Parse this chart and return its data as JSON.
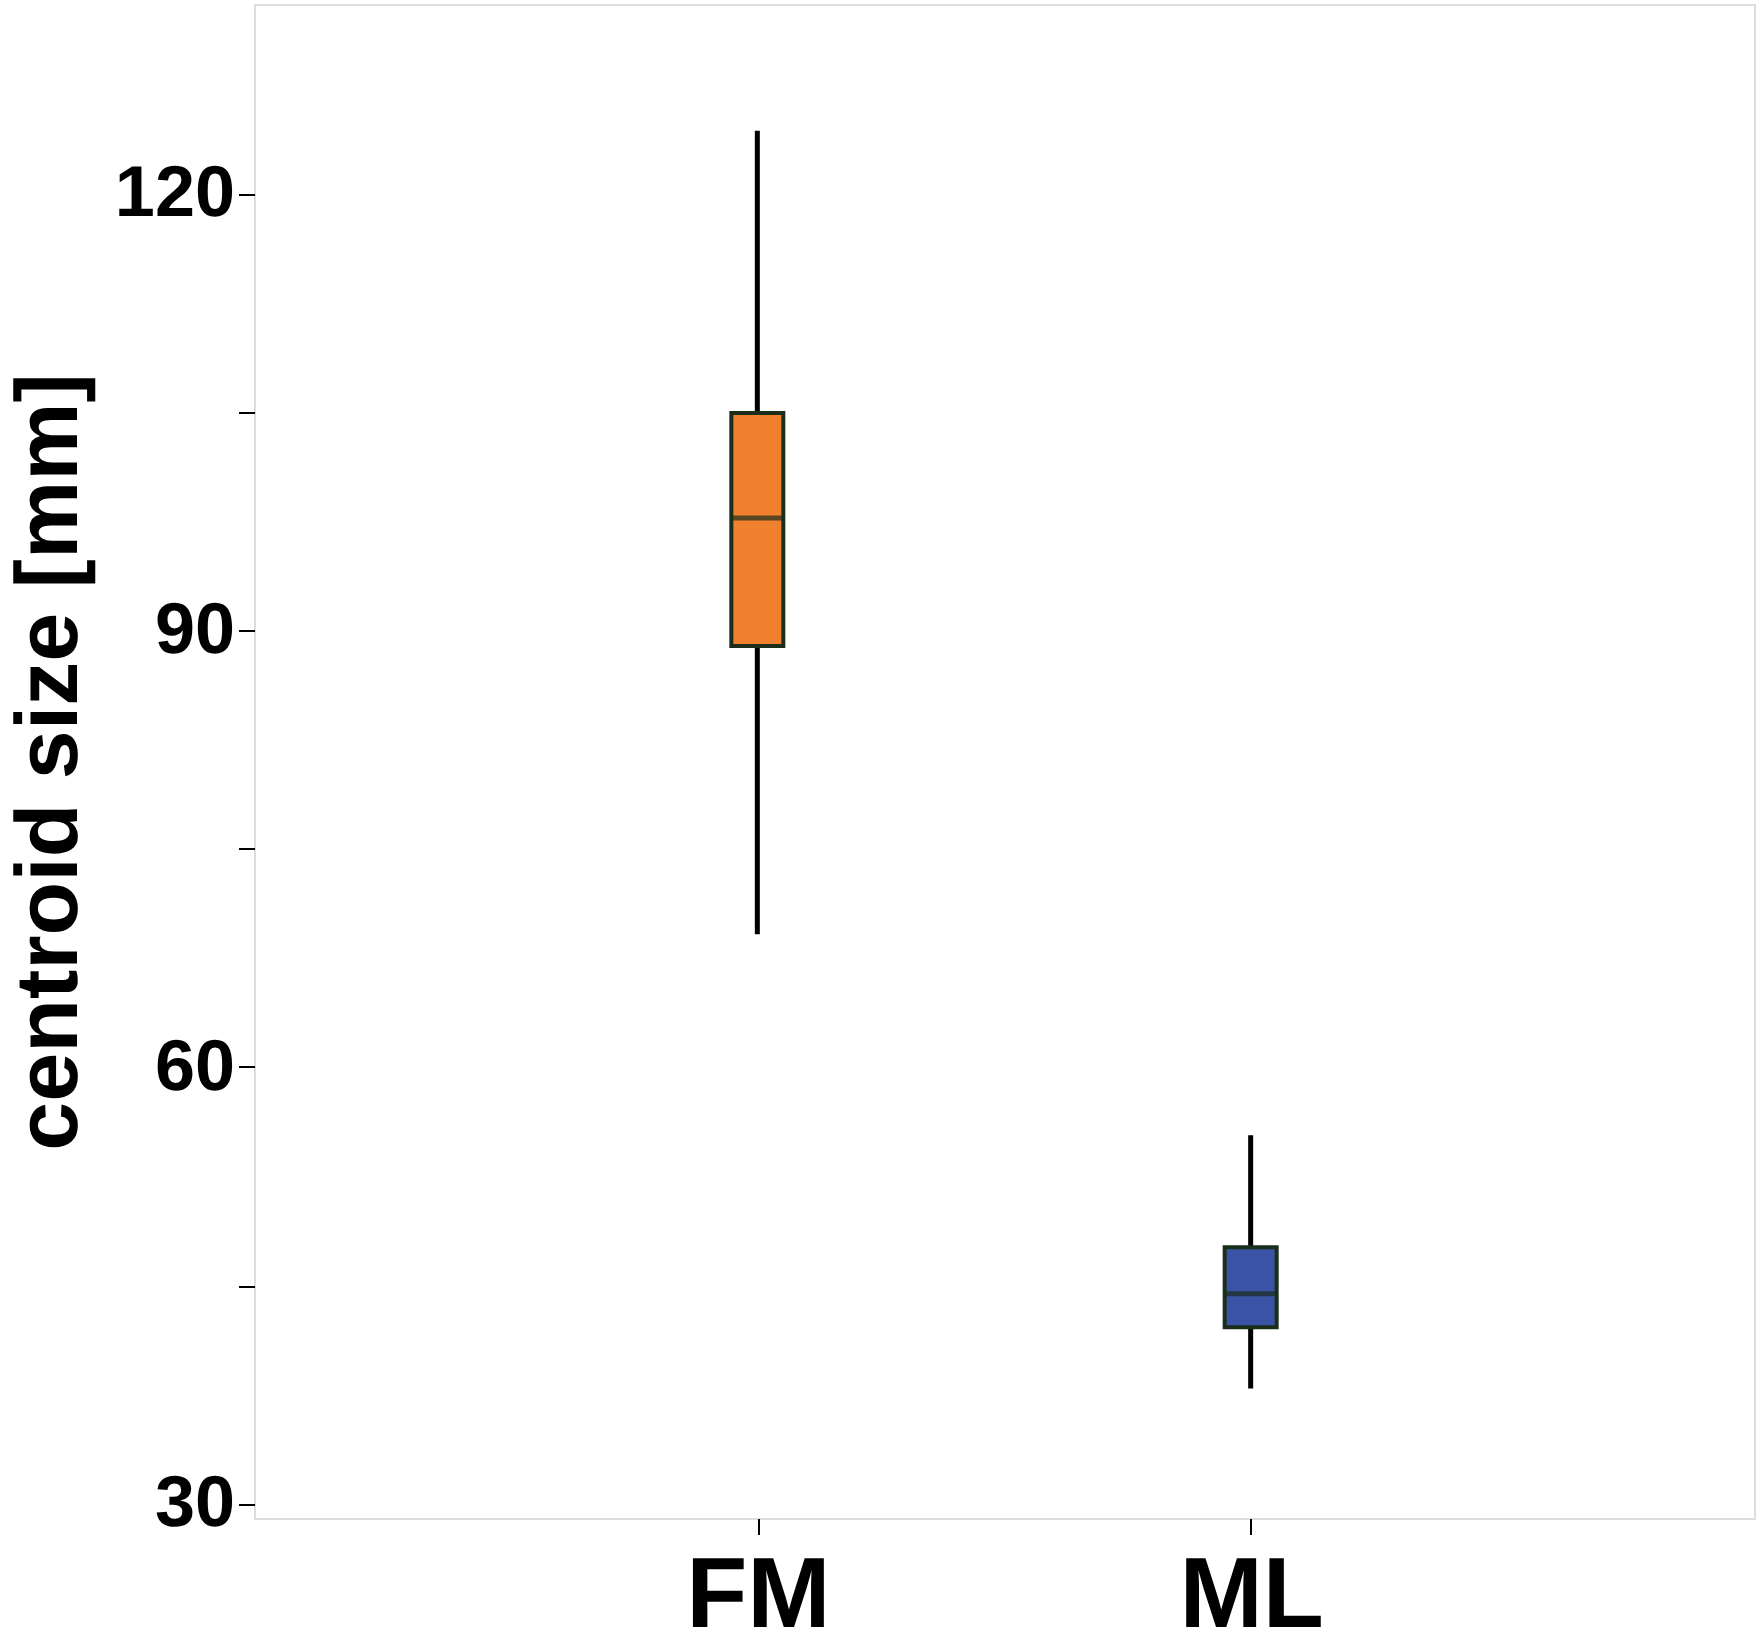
{
  "chart_data": {
    "type": "box",
    "ylabel": "centroid size [mm]",
    "categories": [
      "FM",
      "ML"
    ],
    "colors": [
      "#f07f2e",
      "#3a53a4"
    ],
    "boxes": [
      {
        "low": 69.1,
        "q1": 88.9,
        "median": 97.7,
        "q3": 104.9,
        "high": 124.3
      },
      {
        "low": 37.9,
        "q1": 42.1,
        "median": 44.4,
        "q3": 47.6,
        "high": 55.3
      }
    ],
    "ylim": [
      29,
      133
    ],
    "yticks": [
      30,
      {
        "value": 45,
        "label": null
      },
      60,
      {
        "value": 75,
        "label": null
      },
      90,
      {
        "value": 105,
        "label": null
      },
      120
    ],
    "grid": false
  }
}
